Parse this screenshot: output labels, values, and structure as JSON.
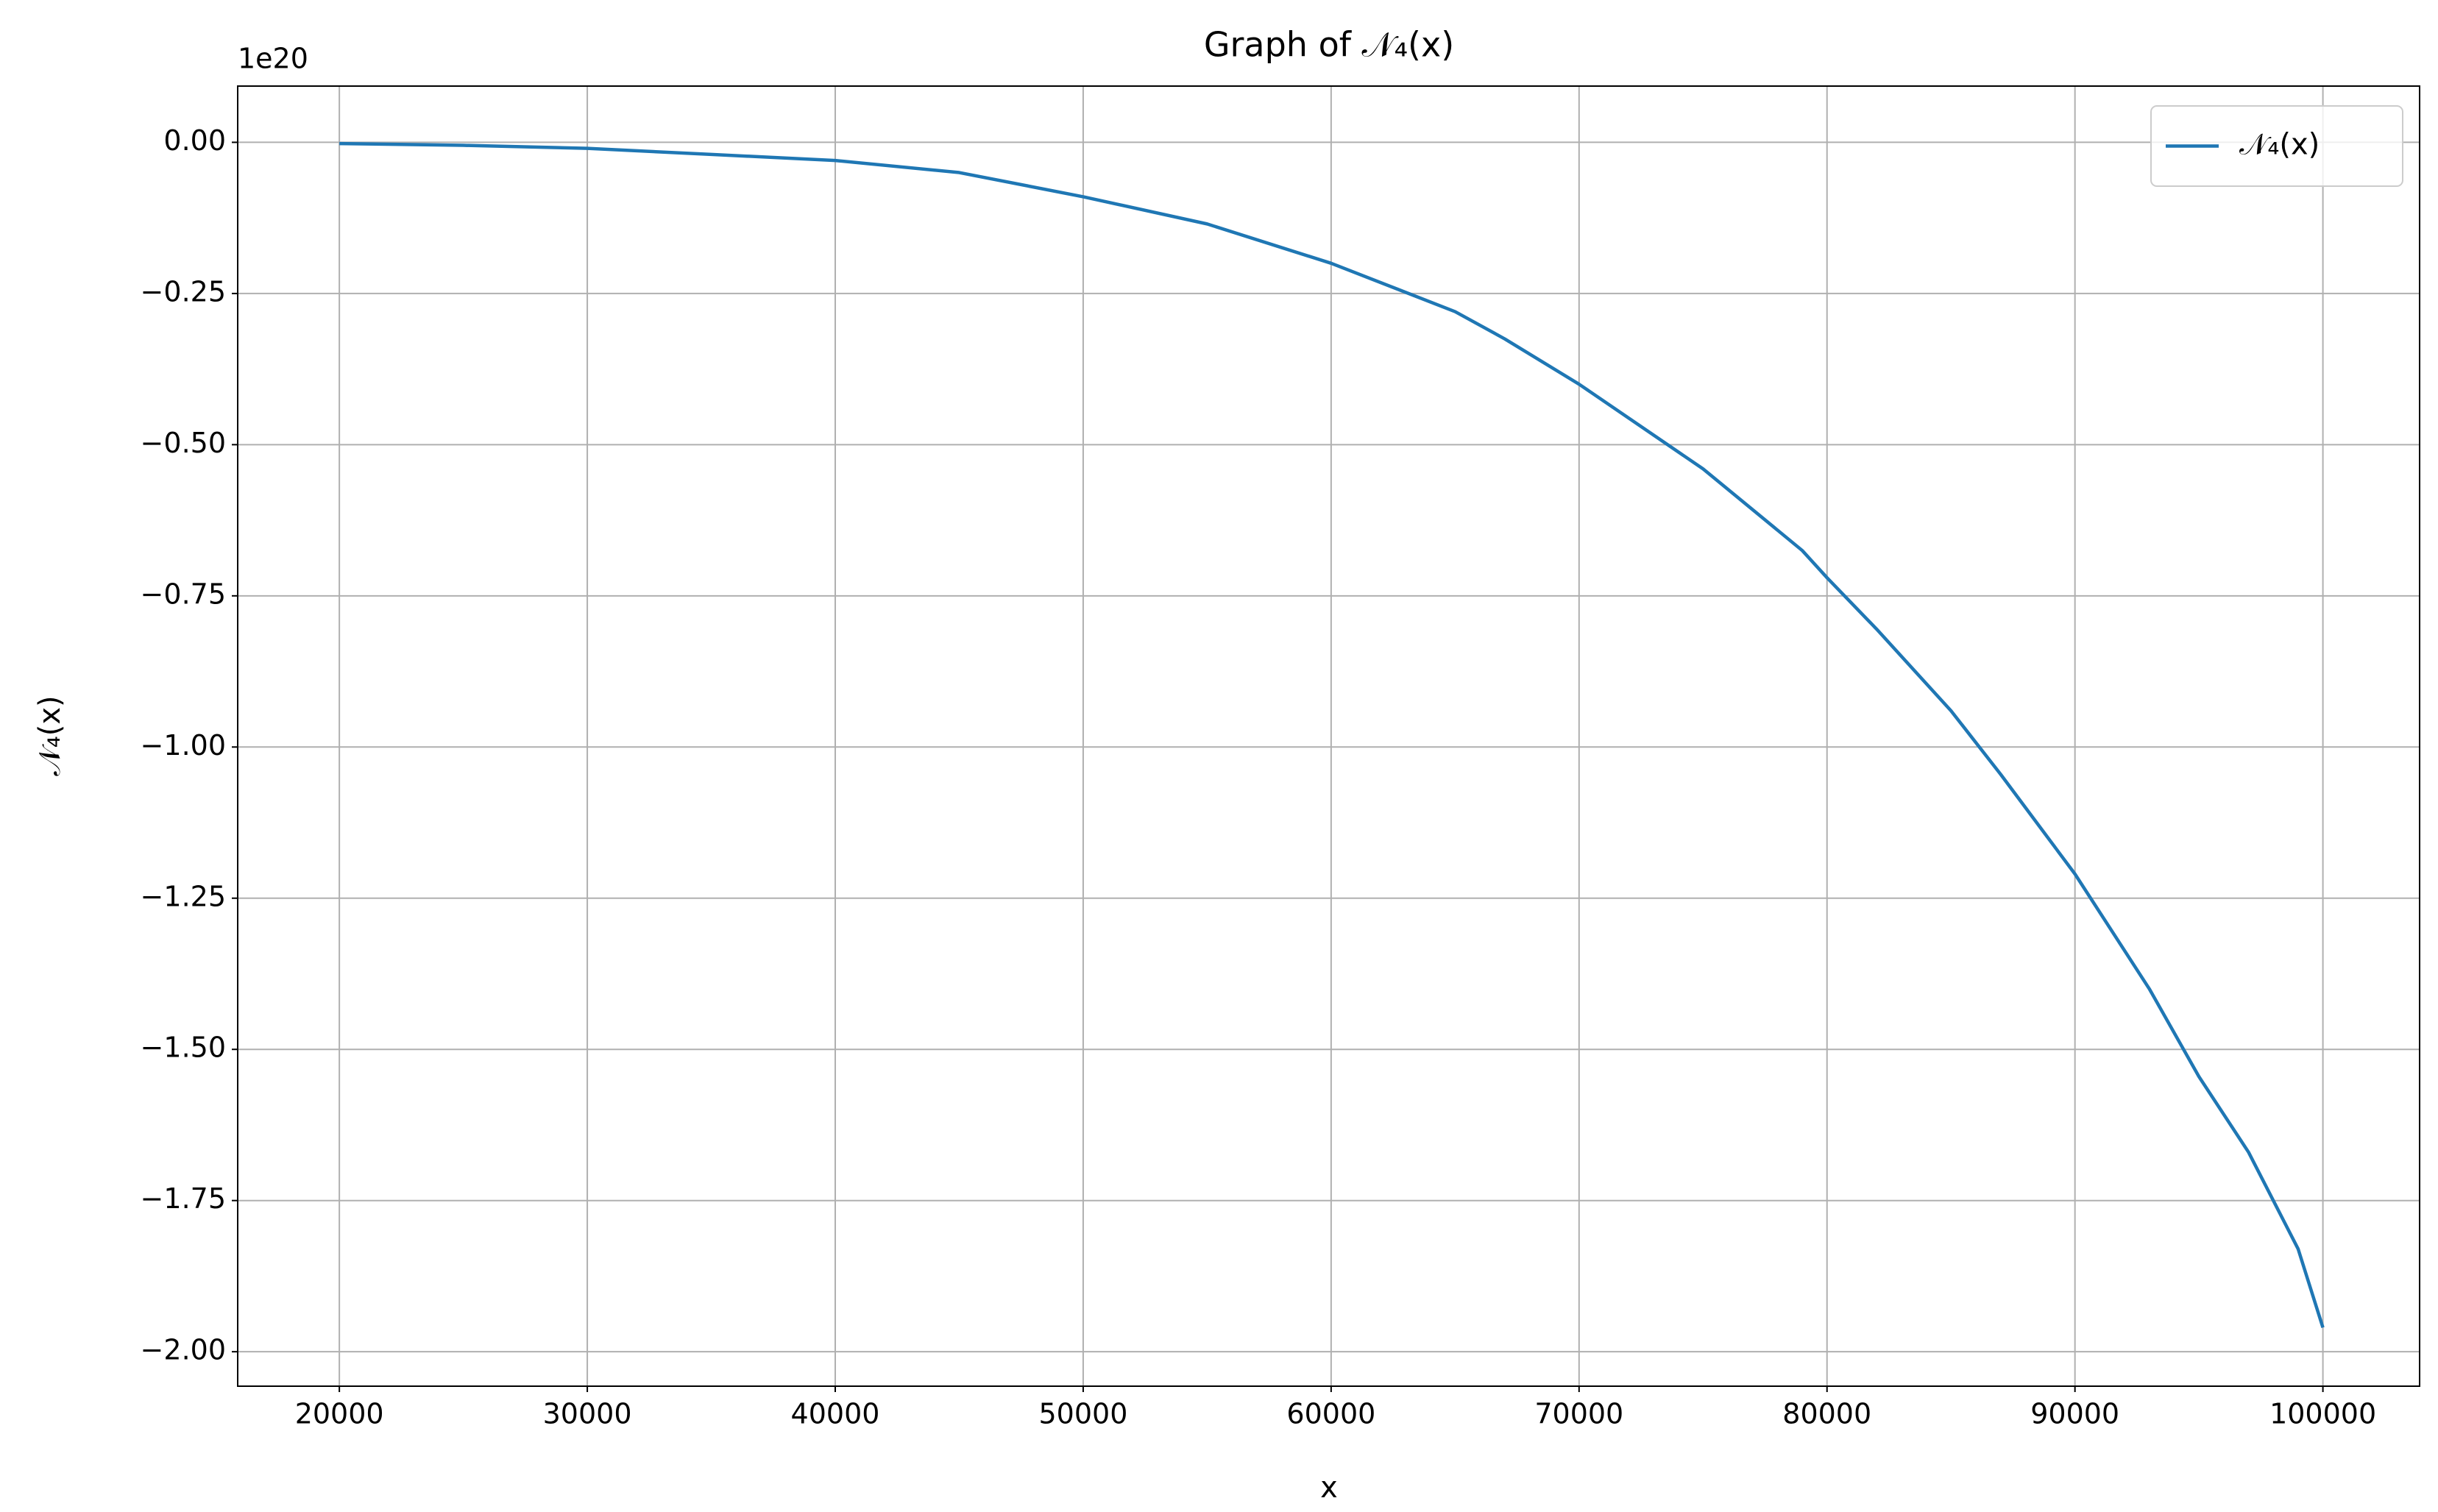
{
  "chart_data": {
    "type": "line",
    "title": "Graph of 𝒩₄(x)",
    "xlabel": "x",
    "ylabel": "𝒩₄(x)",
    "offset_label": "1e20",
    "x": [
      20000,
      25000,
      30000,
      35000,
      40000,
      45000,
      50000,
      55000,
      60000,
      65000,
      67000,
      70000,
      75000,
      79000,
      80000,
      82000,
      85000,
      87000,
      90000,
      93000,
      95000,
      97000,
      99000,
      100000
    ],
    "series": [
      {
        "name": "𝒩₄(x)",
        "color": "#1f77b4",
        "values": [
          -0.002,
          -0.005,
          -0.01,
          -0.02,
          -0.03,
          -0.05,
          -0.09,
          -0.135,
          -0.2,
          -0.28,
          -0.325,
          -0.4,
          -0.54,
          -0.675,
          -0.72,
          -0.805,
          -0.94,
          -1.045,
          -1.21,
          -1.4,
          -1.545,
          -1.67,
          -1.83,
          -1.96
        ]
      }
    ],
    "xlim": [
      15900,
      103900
    ],
    "ylim": [
      -2.057,
      0.093
    ],
    "xticks": [
      20000,
      30000,
      40000,
      50000,
      60000,
      70000,
      80000,
      90000,
      100000
    ],
    "yticks": [
      {
        "value": 0,
        "label": "0.00"
      },
      {
        "value": -0.25,
        "label": "−0.25"
      },
      {
        "value": -0.5,
        "label": "−0.50"
      },
      {
        "value": -0.75,
        "label": "−0.75"
      },
      {
        "value": -1,
        "label": "−1.00"
      },
      {
        "value": -1.25,
        "label": "−1.25"
      },
      {
        "value": -1.5,
        "label": "−1.50"
      },
      {
        "value": -1.75,
        "label": "−1.75"
      },
      {
        "value": -2,
        "label": "−2.00"
      }
    ],
    "grid": true,
    "legend": "upper right"
  }
}
